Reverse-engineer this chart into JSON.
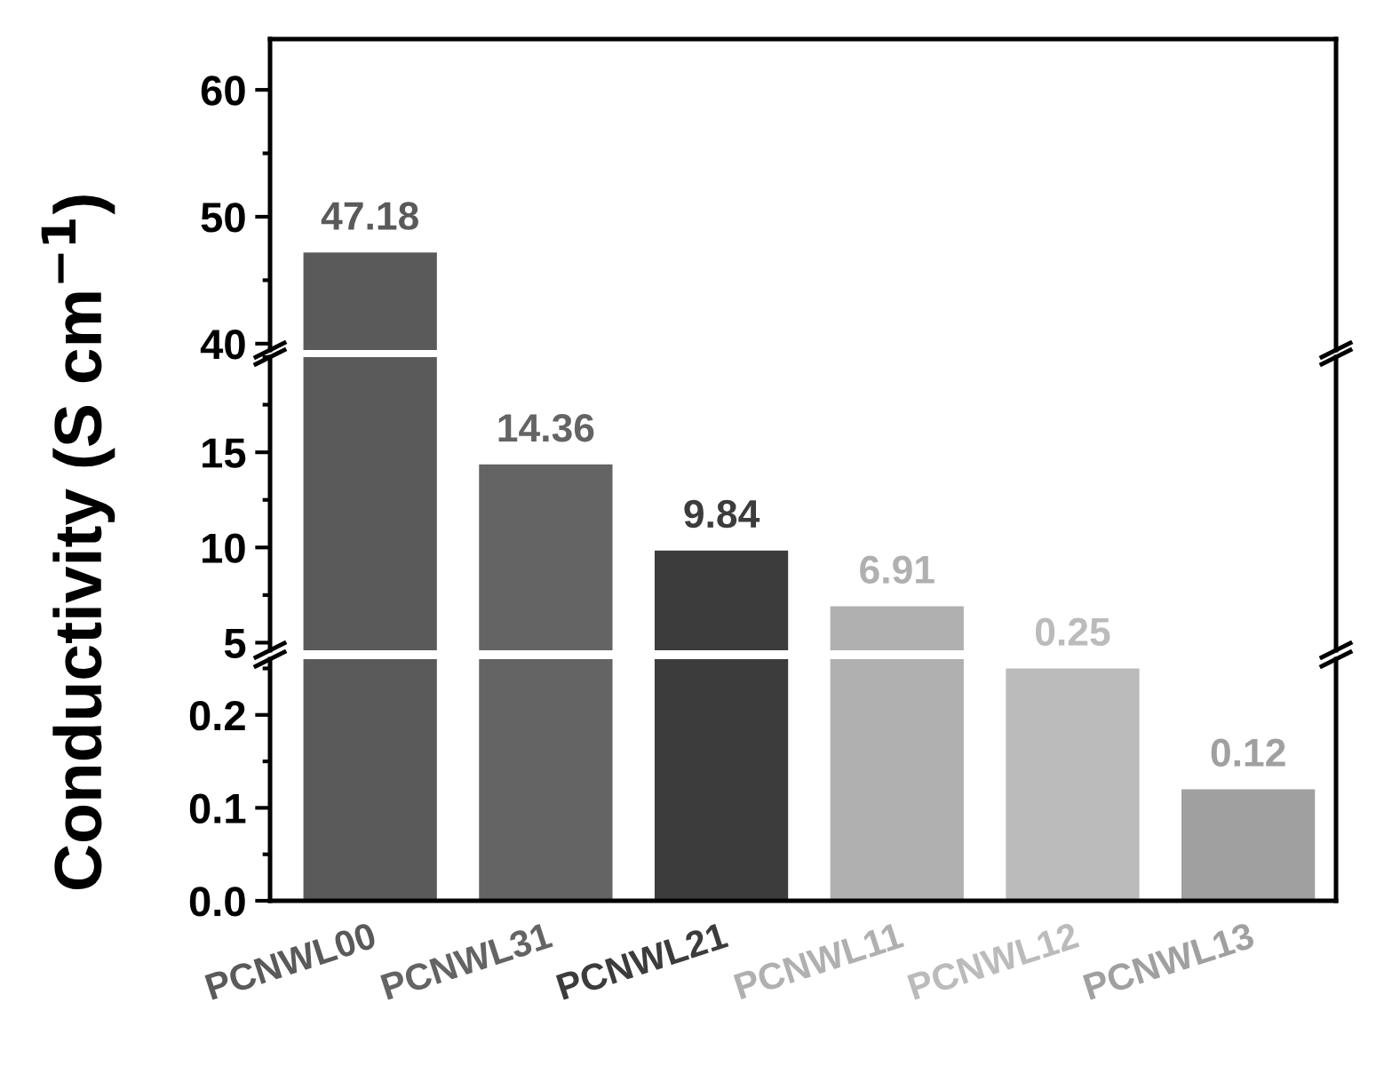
{
  "chart_data": [
    {
      "type": "bar",
      "values": [
        47.18,
        null,
        null,
        null,
        null,
        null
      ],
      "colors": [
        "#5a5a5a",
        "#646464",
        "#3c3c3c",
        "#b0b0b0",
        "#bbbbbb",
        "#a0a0a0"
      ],
      "value_labels": [
        "47.18",
        null,
        null,
        null,
        null,
        null
      ],
      "ylim": [
        39.5,
        64
      ],
      "yticks": [
        40,
        50,
        60
      ],
      "tick_labels": "y",
      "grid": false
    },
    {
      "type": "bar",
      "values": [
        20,
        14.36,
        9.84,
        6.91,
        null,
        null
      ],
      "colors": [
        "#5a5a5a",
        "#646464",
        "#3c3c3c",
        "#b0b0b0",
        "#bbbbbb",
        "#a0a0a0"
      ],
      "value_labels": [
        null,
        "14.36",
        "9.84",
        "6.91",
        null,
        null
      ],
      "ylabel": "Conductivity (S cm$^{−1}$)",
      "ylim": [
        4.6,
        20
      ],
      "yticks": [
        5,
        10,
        15
      ],
      "tick_labels": "y",
      "grid": false
    },
    {
      "type": "bar",
      "categories": [
        "PCNWL00",
        "PCNWL31",
        "PCNWL21",
        "PCNWL11",
        "PCNWL12",
        "PCNWL13"
      ],
      "values": [
        0.26,
        0.26,
        0.26,
        0.26,
        0.25,
        0.12
      ],
      "colors": [
        "#5a5a5a",
        "#646464",
        "#3c3c3c",
        "#b0b0b0",
        "#bbbbbb",
        "#a0a0a0"
      ],
      "value_labels": [
        null,
        null,
        null,
        null,
        "0.25",
        "0.12"
      ],
      "ylim": [
        0,
        0.26
      ],
      "yticks": [
        {
          "value": 0,
          "label": "0.0"
        },
        0.1,
        0.2
      ],
      "grid": false
    }
  ]
}
